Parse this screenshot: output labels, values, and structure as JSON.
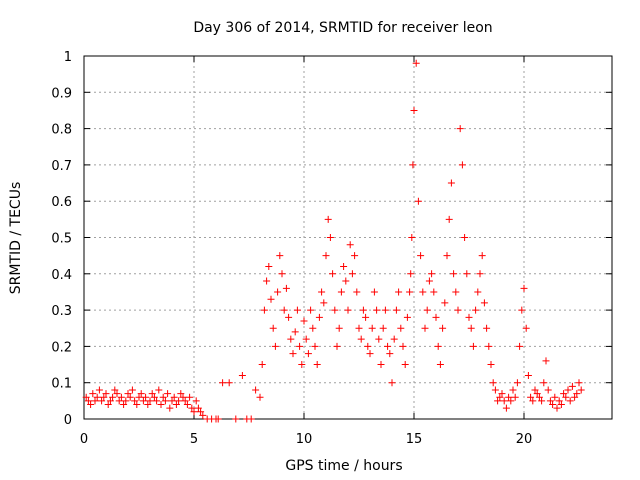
{
  "chart_data": {
    "type": "scatter",
    "title": "Day 306 of 2014, SRMTID for receiver leon",
    "xlabel": "GPS time / hours",
    "ylabel": "SRMTID / TECUs",
    "xlim": [
      0,
      24
    ],
    "ylim": [
      0,
      1
    ],
    "xticks": [
      0,
      5,
      10,
      15,
      20
    ],
    "xtick_labels": [
      "0",
      "5",
      "10",
      "15",
      "20"
    ],
    "yticks": [
      0,
      0.1,
      0.2,
      0.3,
      0.4,
      0.5,
      0.6,
      0.7,
      0.8,
      0.9,
      1
    ],
    "ytick_labels": [
      "0",
      "0.1",
      "0.2",
      "0.3",
      "0.4",
      "0.5",
      "0.6",
      "0.7",
      "0.8",
      "0.9",
      "1"
    ],
    "grid": true,
    "marker": "+",
    "color": "#ff0000",
    "series": [
      {
        "name": "SRMTID",
        "x": [
          0.1,
          0.2,
          0.3,
          0.4,
          0.5,
          0.6,
          0.7,
          0.8,
          0.9,
          1.0,
          1.1,
          1.2,
          1.3,
          1.4,
          1.5,
          1.6,
          1.7,
          1.8,
          1.9,
          2.0,
          2.1,
          2.2,
          2.3,
          2.4,
          2.5,
          2.6,
          2.7,
          2.8,
          2.9,
          3.0,
          3.1,
          3.2,
          3.3,
          3.4,
          3.5,
          3.6,
          3.7,
          3.8,
          3.9,
          4.0,
          4.1,
          4.2,
          4.3,
          4.4,
          4.5,
          4.6,
          4.7,
          4.8,
          4.9,
          5.0,
          5.1,
          5.2,
          5.3,
          5.4,
          5.6,
          5.8,
          6.0,
          6.1,
          6.3,
          6.6,
          6.9,
          7.2,
          7.4,
          7.6,
          7.8,
          8.0,
          8.1,
          8.2,
          8.3,
          8.4,
          8.5,
          8.6,
          8.7,
          8.8,
          8.9,
          9.0,
          9.1,
          9.2,
          9.3,
          9.4,
          9.5,
          9.6,
          9.7,
          9.8,
          9.9,
          10.0,
          10.1,
          10.2,
          10.3,
          10.4,
          10.5,
          10.6,
          10.7,
          10.8,
          10.9,
          11.0,
          11.1,
          11.2,
          11.3,
          11.4,
          11.5,
          11.6,
          11.7,
          11.8,
          11.9,
          12.0,
          12.1,
          12.2,
          12.3,
          12.4,
          12.5,
          12.6,
          12.7,
          12.8,
          12.9,
          13.0,
          13.1,
          13.2,
          13.3,
          13.4,
          13.5,
          13.6,
          13.7,
          13.8,
          13.9,
          14.0,
          14.1,
          14.2,
          14.3,
          14.4,
          14.5,
          14.6,
          14.7,
          14.8,
          14.85,
          14.9,
          14.95,
          15.0,
          15.1,
          15.2,
          15.3,
          15.4,
          15.5,
          15.6,
          15.7,
          15.8,
          15.9,
          16.0,
          16.1,
          16.2,
          16.3,
          16.4,
          16.5,
          16.6,
          16.7,
          16.8,
          16.9,
          17.0,
          17.1,
          17.2,
          17.3,
          17.4,
          17.5,
          17.6,
          17.7,
          17.8,
          17.9,
          18.0,
          18.1,
          18.2,
          18.3,
          18.4,
          18.5,
          18.6,
          18.7,
          18.8,
          18.9,
          19.0,
          19.1,
          19.2,
          19.3,
          19.4,
          19.5,
          19.6,
          19.7,
          19.8,
          19.9,
          20.0,
          20.1,
          20.2,
          20.3,
          20.4,
          20.5,
          20.6,
          20.7,
          20.8,
          20.9,
          21.0,
          21.1,
          21.2,
          21.3,
          21.4,
          21.5,
          21.6,
          21.7,
          21.8,
          21.9,
          22.0,
          22.1,
          22.2,
          22.3,
          22.4,
          22.5,
          22.6
        ],
        "y": [
          0.06,
          0.05,
          0.04,
          0.07,
          0.05,
          0.06,
          0.08,
          0.05,
          0.06,
          0.07,
          0.04,
          0.05,
          0.06,
          0.08,
          0.07,
          0.05,
          0.06,
          0.04,
          0.05,
          0.07,
          0.06,
          0.08,
          0.05,
          0.04,
          0.06,
          0.07,
          0.05,
          0.06,
          0.04,
          0.05,
          0.07,
          0.06,
          0.05,
          0.08,
          0.04,
          0.06,
          0.05,
          0.07,
          0.03,
          0.05,
          0.06,
          0.04,
          0.05,
          0.07,
          0.06,
          0.05,
          0.04,
          0.06,
          0.03,
          0.02,
          0.05,
          0.03,
          0.02,
          0.01,
          0.0,
          0.0,
          0.0,
          0.0,
          0.1,
          0.1,
          0.0,
          0.12,
          0.0,
          0.0,
          0.08,
          0.06,
          0.15,
          0.3,
          0.38,
          0.42,
          0.33,
          0.25,
          0.2,
          0.35,
          0.45,
          0.4,
          0.3,
          0.36,
          0.28,
          0.22,
          0.18,
          0.24,
          0.3,
          0.2,
          0.15,
          0.27,
          0.22,
          0.18,
          0.3,
          0.25,
          0.2,
          0.15,
          0.28,
          0.35,
          0.32,
          0.45,
          0.55,
          0.5,
          0.4,
          0.3,
          0.2,
          0.25,
          0.35,
          0.42,
          0.38,
          0.3,
          0.48,
          0.4,
          0.45,
          0.35,
          0.25,
          0.22,
          0.3,
          0.28,
          0.2,
          0.18,
          0.25,
          0.35,
          0.3,
          0.22,
          0.15,
          0.25,
          0.3,
          0.2,
          0.18,
          0.1,
          0.22,
          0.3,
          0.35,
          0.25,
          0.2,
          0.15,
          0.28,
          0.35,
          0.4,
          0.5,
          0.7,
          0.85,
          0.98,
          0.6,
          0.45,
          0.35,
          0.25,
          0.3,
          0.38,
          0.4,
          0.35,
          0.28,
          0.2,
          0.15,
          0.25,
          0.32,
          0.45,
          0.55,
          0.65,
          0.4,
          0.35,
          0.3,
          0.8,
          0.7,
          0.5,
          0.4,
          0.28,
          0.25,
          0.2,
          0.3,
          0.35,
          0.4,
          0.45,
          0.32,
          0.25,
          0.2,
          0.15,
          0.1,
          0.08,
          0.05,
          0.06,
          0.07,
          0.05,
          0.03,
          0.06,
          0.05,
          0.08,
          0.06,
          0.1,
          0.2,
          0.3,
          0.36,
          0.25,
          0.12,
          0.06,
          0.05,
          0.08,
          0.07,
          0.06,
          0.05,
          0.1,
          0.16,
          0.08,
          0.05,
          0.04,
          0.06,
          0.03,
          0.05,
          0.04,
          0.07,
          0.06,
          0.08,
          0.05,
          0.09,
          0.06,
          0.07,
          0.1,
          0.08
        ]
      }
    ]
  }
}
